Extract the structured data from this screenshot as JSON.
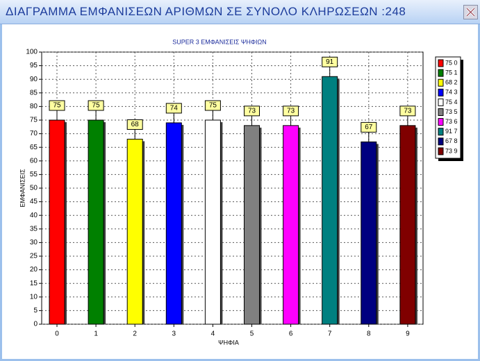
{
  "window_title": "ΔΙΑΓΡΑΜΜΑ ΕΜΦΑΝΙΣΕΩΝ ΑΡΙΘΜΩΝ ΣΕ ΣΥΝΟΛΟ ΚΛΗΡΩΣΕΩΝ :248",
  "chart_data": {
    "type": "bar",
    "title": "SUPER 3  ΕΜΦΑΝΙΣΕΙΣ ΨΗΦΙΩΝ",
    "x_label": "ΨΗΦΙΑ",
    "y_label": "ΕΜΦΑΝΙΣΕΙΣ",
    "categories": [
      "0",
      "1",
      "2",
      "3",
      "4",
      "5",
      "6",
      "7",
      "8",
      "9"
    ],
    "values": [
      75,
      75,
      68,
      74,
      75,
      73,
      73,
      91,
      67,
      73
    ],
    "colors": [
      "#ff0000",
      "#008000",
      "#ffff00",
      "#0000ff",
      "#ffffff",
      "#808080",
      "#ff00ff",
      "#008080",
      "#000080",
      "#800000"
    ],
    "legend_labels": [
      "75 0",
      "75 1",
      "68 2",
      "74 3",
      "75 4",
      "73 5",
      "73 6",
      "91 7",
      "67 8",
      "73 9"
    ],
    "ylim": [
      0,
      100
    ],
    "yticks": [
      0,
      5,
      10,
      15,
      20,
      25,
      30,
      35,
      40,
      45,
      50,
      55,
      60,
      65,
      70,
      75,
      80,
      85,
      90,
      95,
      100
    ],
    "grid": true
  }
}
